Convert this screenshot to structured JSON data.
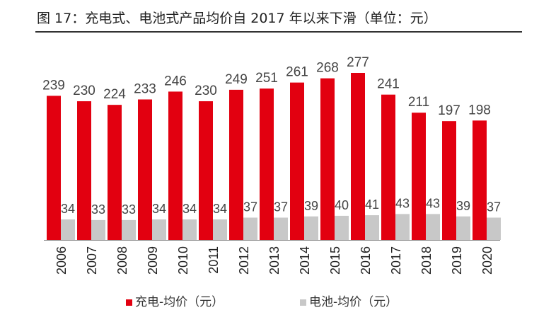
{
  "figure": {
    "title": "图 17：充电式、电池式产品均价自 2017 年以来下滑（单位：元）"
  },
  "chart_data": {
    "type": "bar",
    "categories": [
      "2006",
      "2007",
      "2008",
      "2009",
      "2010",
      "2011",
      "2012",
      "2013",
      "2014",
      "2015",
      "2016",
      "2017",
      "2018",
      "2019",
      "2020"
    ],
    "series": [
      {
        "name": "充电-均价（元）",
        "color": "#e20010",
        "values": [
          239,
          230,
          224,
          233,
          246,
          230,
          249,
          251,
          261,
          268,
          277,
          241,
          211,
          197,
          198
        ]
      },
      {
        "name": "电池-均价（元）",
        "color": "#c8c8c8",
        "values": [
          34,
          33,
          33,
          34,
          34,
          34,
          37,
          37,
          39,
          40,
          41,
          43,
          43,
          39,
          37
        ]
      }
    ],
    "ylim": [
      0,
      277
    ],
    "data_labels": true,
    "legend_position": "bottom",
    "grid": false
  }
}
